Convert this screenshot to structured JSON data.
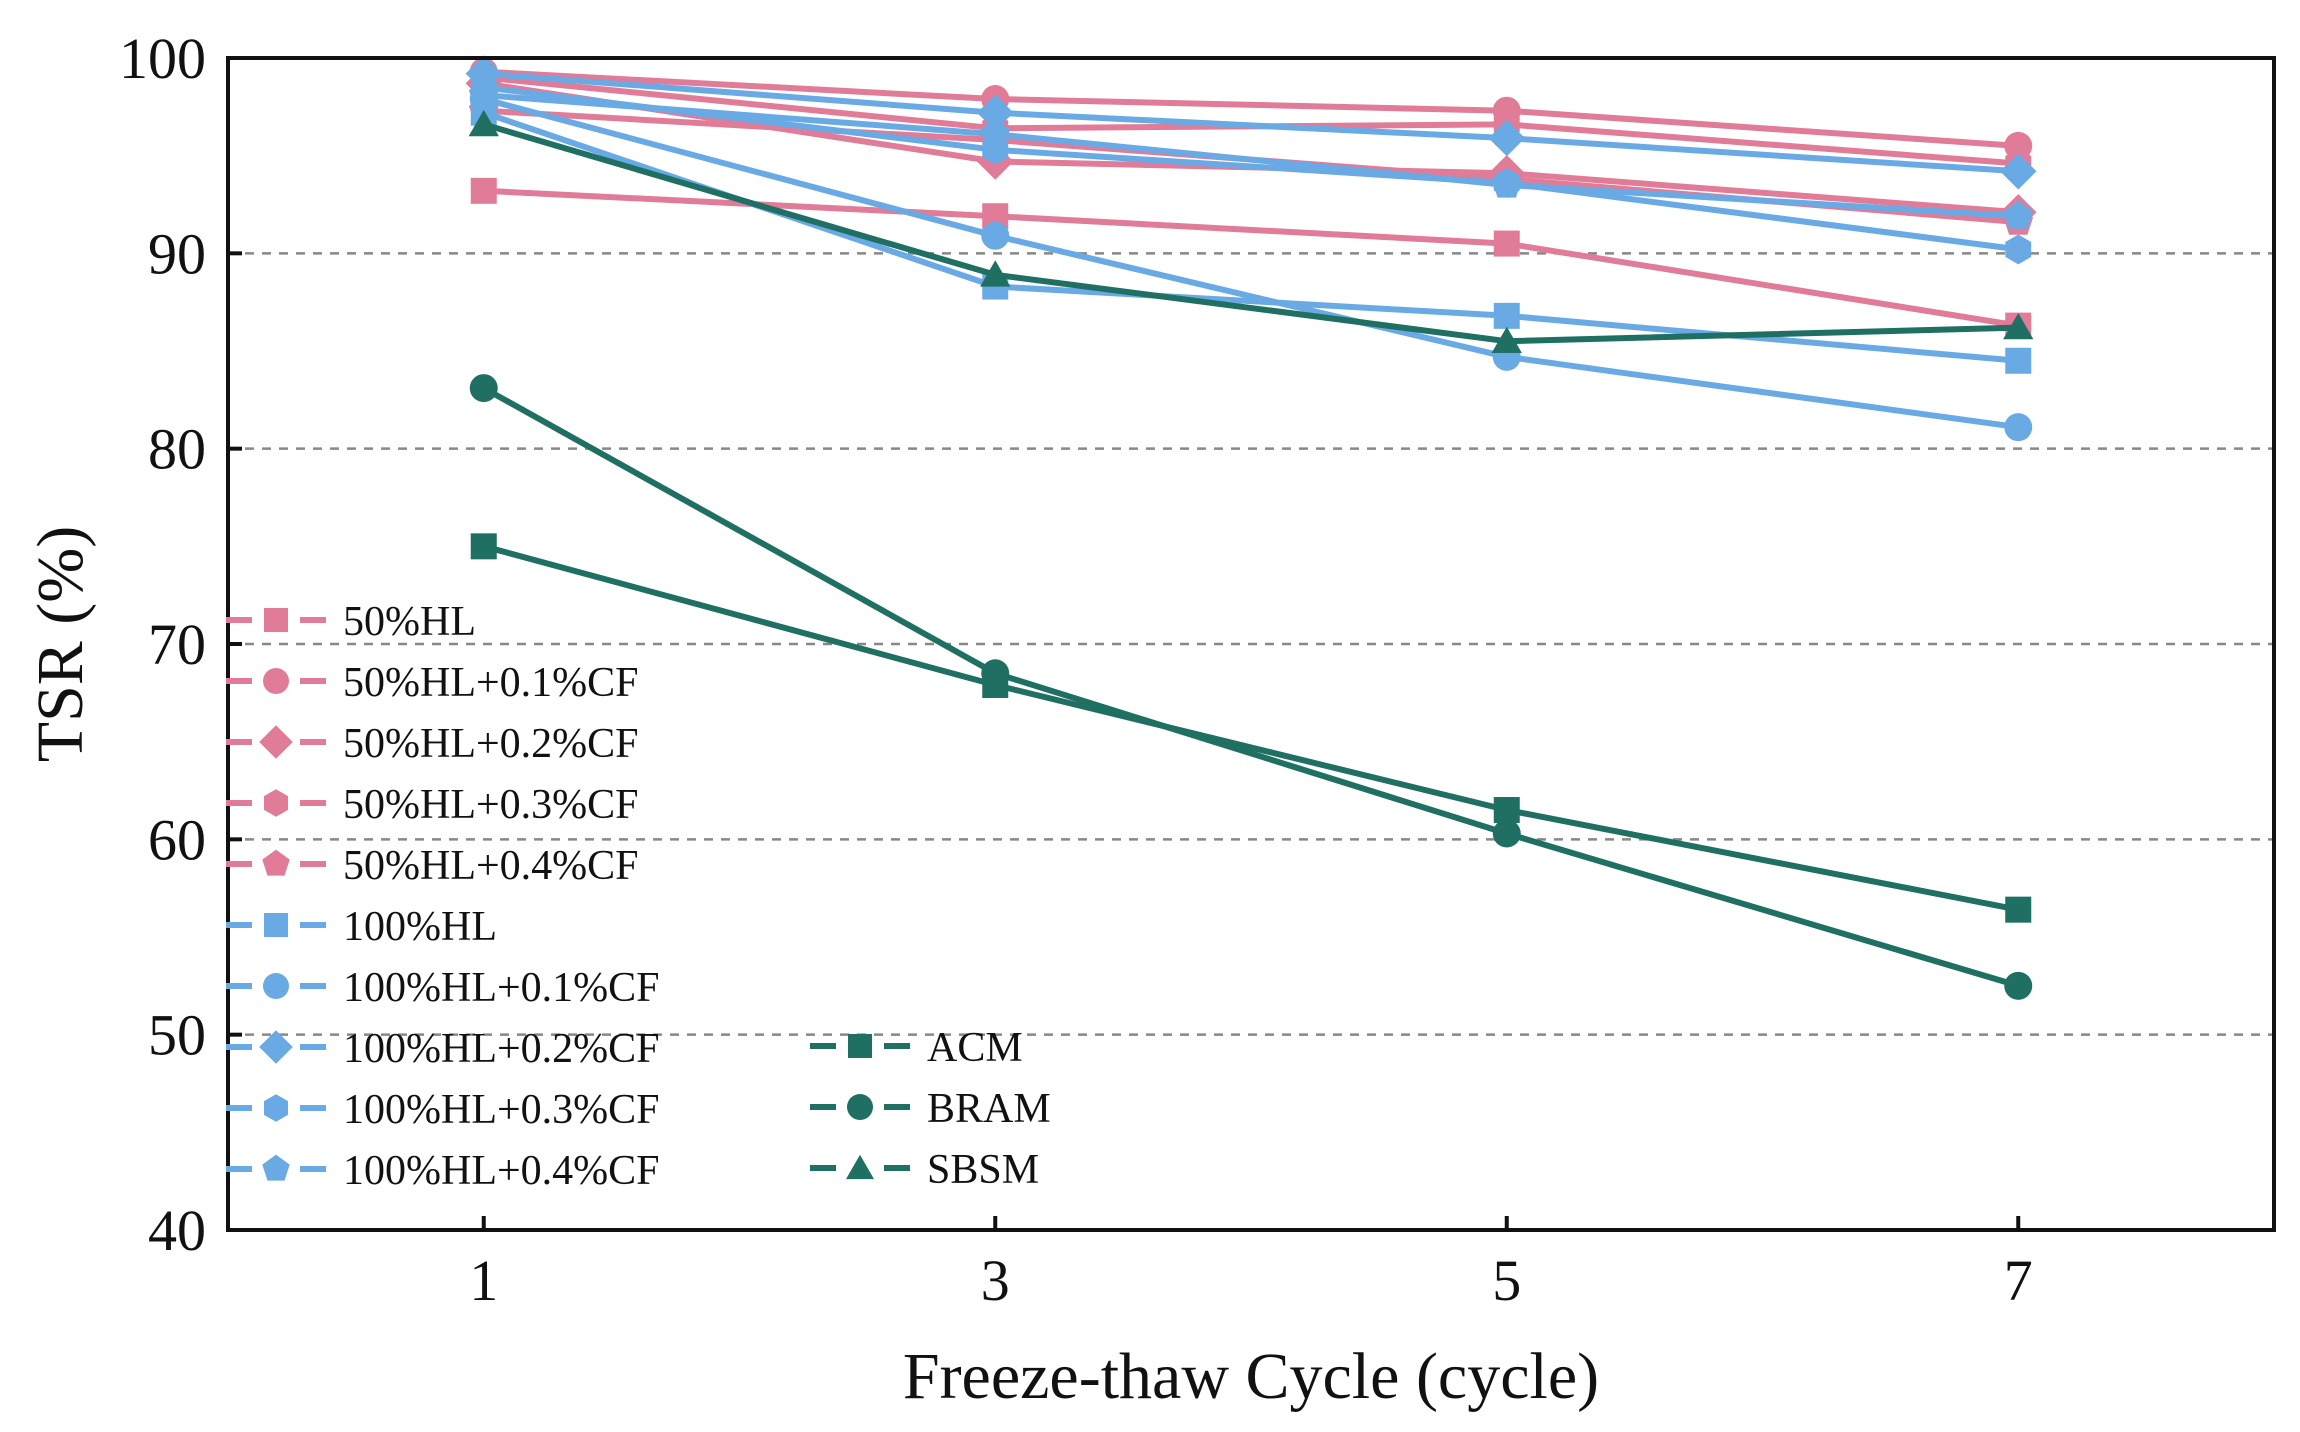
{
  "chart_data": {
    "type": "line",
    "title": "",
    "xlabel": "Freeze-thaw Cycle (cycle)",
    "ylabel": "TSR (%)",
    "x": [
      1,
      3,
      5,
      7
    ],
    "xticks": [
      "1",
      "3",
      "5",
      "7"
    ],
    "xlim": [
      0,
      8
    ],
    "ylim": [
      40,
      100
    ],
    "yticks": [
      "40",
      "50",
      "60",
      "70",
      "80",
      "90",
      "100"
    ],
    "grid": "horizontal dashed",
    "legend_position": "lower-left",
    "colors": {
      "pink": "#e07b98",
      "blue": "#6aaae4",
      "green": "#1f6f63"
    },
    "series": [
      {
        "name": "50%HL",
        "color": "#e07b98",
        "marker": "square",
        "values": [
          93.2,
          91.9,
          90.5,
          86.3
        ]
      },
      {
        "name": "50%HL+0.1%CF",
        "color": "#e07b98",
        "marker": "circle",
        "values": [
          99.3,
          97.9,
          97.3,
          95.5
        ]
      },
      {
        "name": "50%HL+0.2%CF",
        "color": "#e07b98",
        "marker": "diamond",
        "values": [
          98.7,
          94.7,
          94.1,
          92.1
        ]
      },
      {
        "name": "50%HL+0.3%CF",
        "color": "#e07b98",
        "marker": "hexagon",
        "values": [
          99.0,
          96.4,
          96.6,
          94.6
        ]
      },
      {
        "name": "50%HL+0.4%CF",
        "color": "#e07b98",
        "marker": "pentagon",
        "values": [
          97.3,
          95.8,
          93.8,
          91.6
        ]
      },
      {
        "name": "100%HL",
        "color": "#6aaae4",
        "marker": "square",
        "values": [
          97.2,
          88.3,
          86.8,
          84.5
        ]
      },
      {
        "name": "100%HL+0.1%CF",
        "color": "#6aaae4",
        "marker": "circle",
        "values": [
          97.9,
          90.9,
          84.7,
          81.1
        ]
      },
      {
        "name": "100%HL+0.2%CF",
        "color": "#6aaae4",
        "marker": "diamond",
        "values": [
          99.2,
          97.2,
          95.9,
          94.2
        ]
      },
      {
        "name": "100%HL+0.3%CF",
        "color": "#6aaae4",
        "marker": "hexagon",
        "values": [
          98.5,
          95.3,
          93.6,
          90.2
        ]
      },
      {
        "name": "100%HL+0.4%CF",
        "color": "#6aaae4",
        "marker": "pentagon",
        "values": [
          98.1,
          96.1,
          93.5,
          91.9
        ]
      },
      {
        "name": "ACM",
        "color": "#1f6f63",
        "marker": "square",
        "values": [
          75.0,
          67.9,
          61.5,
          56.4
        ]
      },
      {
        "name": "BRAM",
        "color": "#1f6f63",
        "marker": "circle",
        "values": [
          83.1,
          68.5,
          60.3,
          52.5
        ]
      },
      {
        "name": "SBSM",
        "color": "#1f6f63",
        "marker": "triangle",
        "values": [
          96.6,
          88.9,
          85.5,
          86.2
        ]
      }
    ]
  }
}
